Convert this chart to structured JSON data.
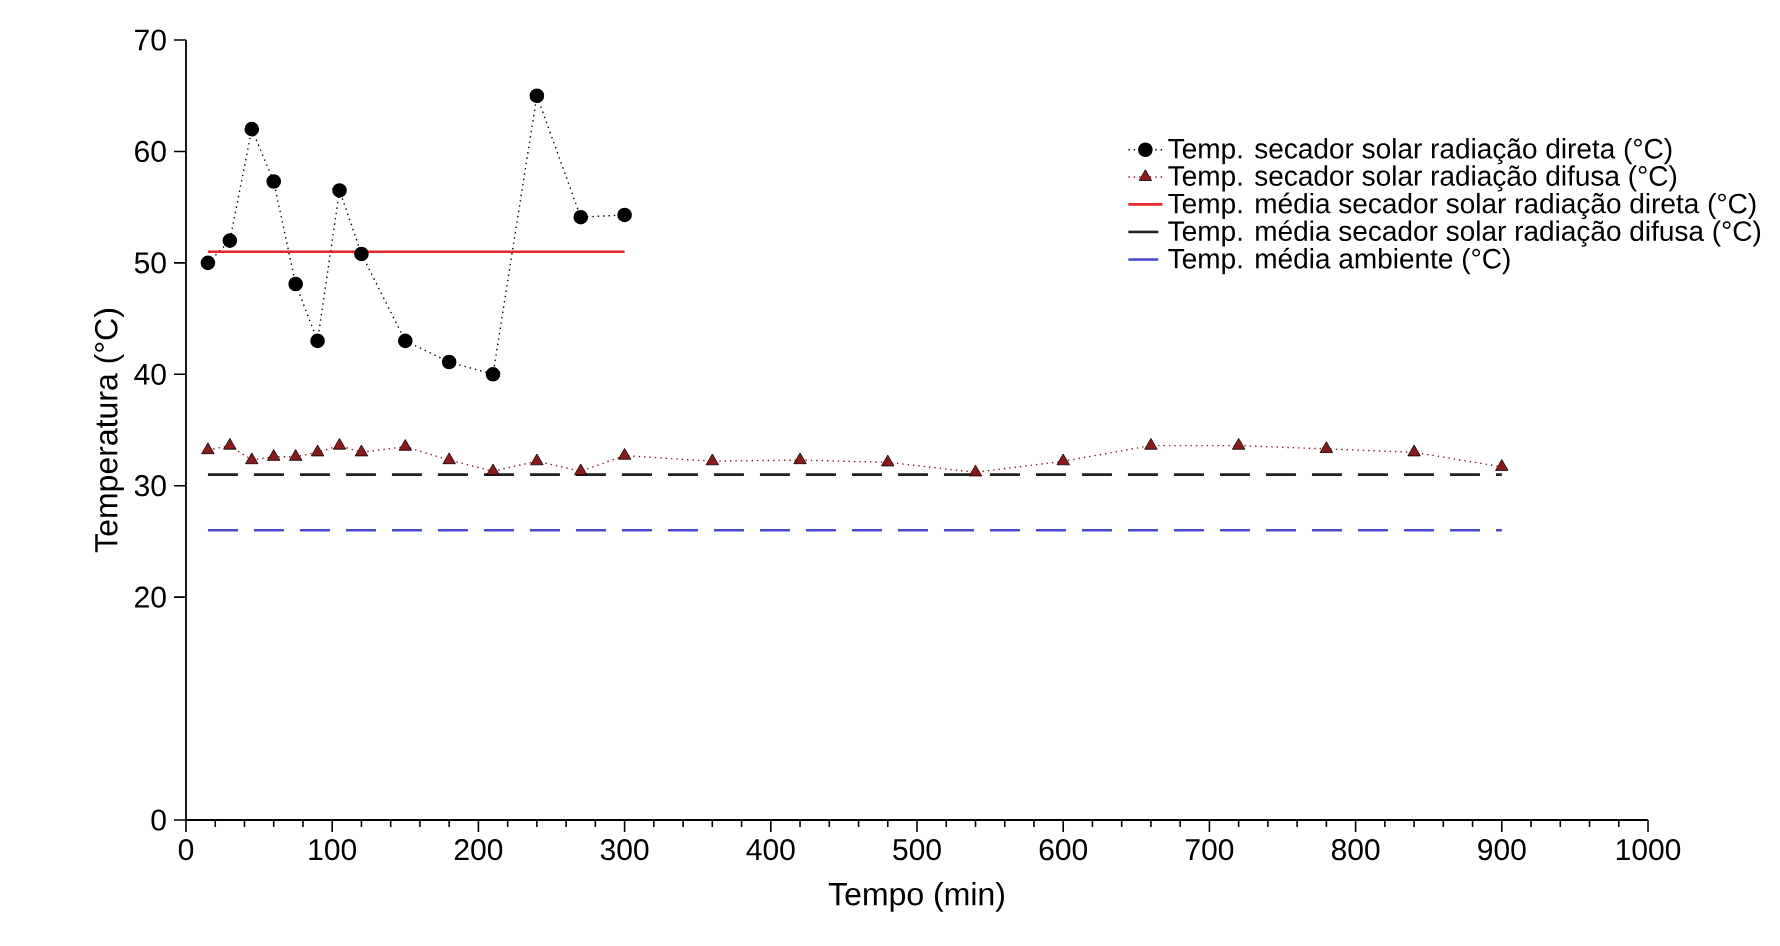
{
  "chart_data": {
    "type": "line",
    "xlabel": "Tempo (min)",
    "ylabel": "Temperatura (°C)",
    "xlim": [
      0,
      1000
    ],
    "xticks": [
      0,
      100,
      200,
      300,
      400,
      500,
      600,
      700,
      800,
      900,
      1000
    ],
    "ylim": [
      0,
      70
    ],
    "yticks": [
      0,
      20,
      30,
      40,
      50,
      60,
      70
    ],
    "grid": false,
    "legend": "top right",
    "series": [
      {
        "name": "Temp. secador solar radiação direta (°C)",
        "marker": "circle",
        "line_style": "dotted",
        "color": "#000000",
        "x": [
          15,
          30,
          45,
          60,
          75,
          90,
          105,
          120,
          150,
          180,
          210,
          240,
          270,
          300
        ],
        "values": [
          50.0,
          52.0,
          62.0,
          57.3,
          48.1,
          43.0,
          56.5,
          50.8,
          43.0,
          41.1,
          40.0,
          65.0,
          54.1,
          54.3
        ]
      },
      {
        "name": "Temp. secador solar radiação difusa (°C)",
        "marker": "triangle",
        "line_style": "dotted",
        "color": "#8b1a1a",
        "x": [
          15,
          30,
          45,
          60,
          75,
          90,
          105,
          120,
          150,
          180,
          210,
          240,
          270,
          300,
          360,
          420,
          480,
          540,
          600,
          660,
          720,
          780,
          840,
          900
        ],
        "values": [
          33.2,
          33.6,
          32.3,
          32.6,
          32.6,
          33.0,
          33.6,
          33.0,
          33.5,
          32.3,
          31.3,
          32.2,
          31.3,
          32.7,
          32.2,
          32.3,
          32.1,
          31.2,
          32.2,
          33.6,
          33.6,
          33.3,
          33.0,
          31.7
        ]
      },
      {
        "name": "Temp. média secador solar radiação direta (°C)",
        "marker": "none",
        "line_style": "solid",
        "color": "#e8262a",
        "x": [
          15,
          300
        ],
        "values": [
          51,
          51
        ]
      },
      {
        "name": "Temp. média secador solar radiação difusa (°C)",
        "marker": "none",
        "line_style": "dashed",
        "color": "#222222",
        "x": [
          15,
          900
        ],
        "values": [
          31,
          31
        ]
      },
      {
        "name": "Temp. média ambiente (°C)",
        "marker": "none",
        "line_style": "dashed",
        "color": "#4a4ad0",
        "x": [
          15,
          900
        ],
        "values": [
          26,
          26
        ]
      }
    ]
  }
}
